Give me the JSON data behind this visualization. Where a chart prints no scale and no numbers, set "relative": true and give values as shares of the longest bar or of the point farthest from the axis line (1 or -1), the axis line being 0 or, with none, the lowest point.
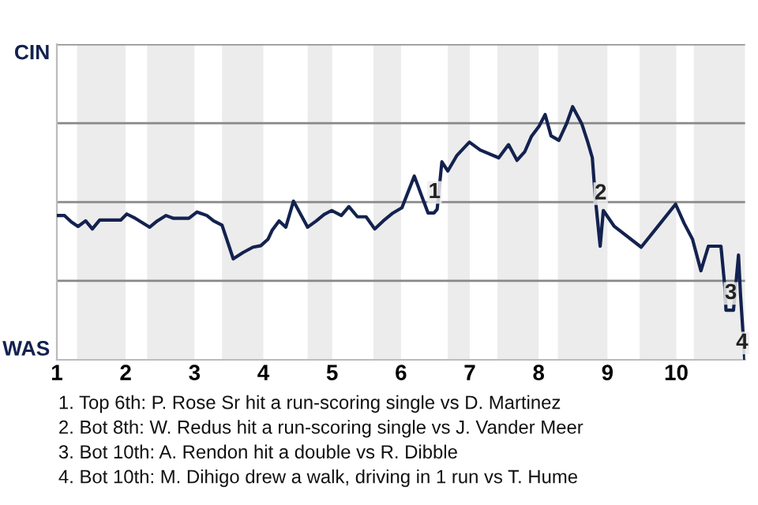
{
  "chart_data": {
    "type": "line",
    "relative": true,
    "x": [
      1.014,
      1.112,
      1.21,
      1.308,
      1.418,
      1.516,
      1.622,
      1.927,
      2.016,
      2.14,
      2.349,
      2.46,
      2.584,
      2.696,
      2.918,
      3.037,
      3.18,
      3.277,
      3.4,
      3.563,
      3.706,
      3.849,
      3.963,
      4.067,
      4.127,
      4.229,
      4.327,
      4.438,
      4.644,
      4.771,
      4.882,
      4.993,
      5.133,
      5.243,
      5.368,
      5.493,
      5.618,
      5.743,
      5.883,
      6.014,
      6.194,
      6.294,
      6.394,
      6.48,
      6.526,
      6.594,
      6.68,
      6.814,
      6.994,
      7.151,
      7.42,
      7.563,
      7.686,
      7.8,
      7.894,
      8.006,
      8.094,
      8.18,
      8.294,
      8.406,
      8.494,
      8.626,
      8.714,
      8.78,
      8.826,
      8.894,
      8.94,
      9.1,
      9.49,
      9.767,
      9.99,
      10.115,
      10.236,
      10.358,
      10.467,
      10.649,
      10.709,
      10.722,
      10.831,
      10.904,
      10.933,
      10.995
    ],
    "series": [
      {
        "color": "#13224f",
        "values": [
          0.57,
          0.57,
          0.545,
          0.527,
          0.549,
          0.517,
          0.552,
          0.552,
          0.576,
          0.559,
          0.524,
          0.549,
          0.57,
          0.559,
          0.559,
          0.584,
          0.57,
          0.549,
          0.532,
          0.399,
          0.424,
          0.445,
          0.451,
          0.476,
          0.511,
          0.549,
          0.524,
          0.627,
          0.524,
          0.549,
          0.574,
          0.59,
          0.57,
          0.605,
          0.565,
          0.565,
          0.517,
          0.549,
          0.58,
          0.601,
          0.726,
          0.652,
          0.58,
          0.58,
          0.595,
          0.782,
          0.746,
          0.808,
          0.86,
          0.829,
          0.798,
          0.85,
          0.788,
          0.823,
          0.882,
          0.923,
          0.969,
          0.885,
          0.867,
          0.933,
          1,
          0.933,
          0.86,
          0.798,
          0.632,
          0.449,
          0.59,
          0.527,
          0.445,
          0.539,
          0.615,
          0.539,
          0.476,
          0.352,
          0.449,
          0.449,
          0.278,
          0.196,
          0.196,
          0.414,
          0.258,
          0
        ]
      }
    ],
    "xlim": [
      1,
      11
    ],
    "xticks": [
      1,
      2,
      3,
      4,
      5,
      6,
      7,
      8,
      9,
      10
    ],
    "ref_lines": [
      {
        "axis": "y",
        "value": 0.312,
        "color": "#888888"
      },
      {
        "axis": "y",
        "value": 0.623,
        "color": "#888888"
      },
      {
        "axis": "y",
        "value": 0.935,
        "color": "#888888"
      },
      {
        "axis": "y",
        "value": 1.247,
        "color": "#888888"
      }
    ],
    "bands": [
      {
        "axis": "x",
        "from": 1.294,
        "to": 2,
        "color": "#ececec"
      },
      {
        "axis": "x",
        "from": 2.311,
        "to": 3,
        "color": "#ececec"
      },
      {
        "axis": "x",
        "from": 3.4,
        "to": 4,
        "color": "#ececec"
      },
      {
        "axis": "x",
        "from": 4.644,
        "to": 5,
        "color": "#ececec"
      },
      {
        "axis": "x",
        "from": 5.6,
        "to": 6,
        "color": "#ececec"
      },
      {
        "axis": "x",
        "from": 6.68,
        "to": 7,
        "color": "#ececec"
      },
      {
        "axis": "x",
        "from": 7.4,
        "to": 8,
        "color": "#ececec"
      },
      {
        "axis": "x",
        "from": 8.28,
        "to": 9,
        "color": "#ececec"
      },
      {
        "axis": "x",
        "from": 9.467,
        "to": 10,
        "color": "#ececec"
      },
      {
        "axis": "x",
        "from": 10.255,
        "to": 11,
        "color": "#ececec"
      }
    ],
    "annotations": [
      "CIN",
      "WAS",
      {
        "text": "1",
        "x": 6.526,
        "y": 0.595
      },
      {
        "text": "2",
        "x": 8.94,
        "y": 0.59
      },
      {
        "text": "3",
        "x": 10.831,
        "y": 0.196
      },
      {
        "text": "4",
        "x": 10.995,
        "y": 0
      },
      "1. Top 6th: P. Rose Sr hit a run-scoring single vs D. Martinez",
      "2. Bot 8th: W. Redus hit a run-scoring single vs J. Vander Meer",
      "3. Bot 10th: A. Rendon hit a double vs R. Dibble",
      "4. Bot 10th: M. Dihigo drew a walk, driving in 1 run vs T. Hume"
    ]
  }
}
